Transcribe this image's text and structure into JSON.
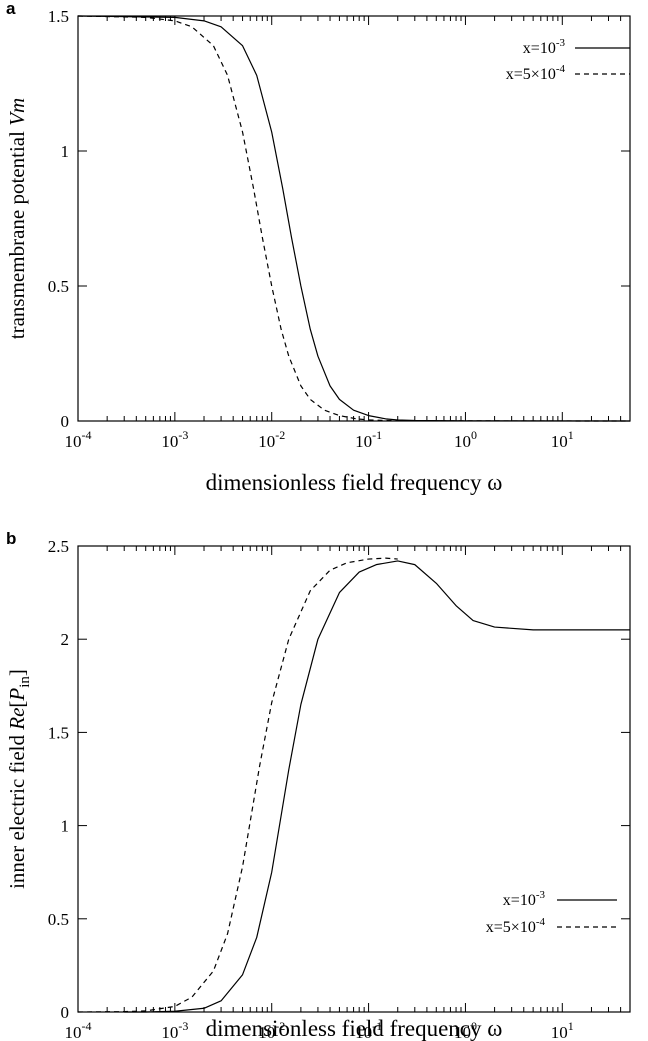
{
  "chart_data": [
    {
      "type": "line",
      "panel_label": "a",
      "xlabel": "dimensionless  field frequency ω",
      "ylabel_parts": {
        "main": "transmembrane potential ",
        "italic": "Vm",
        "rest": ""
      },
      "x_scale": "log",
      "xlim": [
        0.0001,
        50
      ],
      "ylim": [
        0,
        1.5
      ],
      "x_ticks": [
        {
          "base": "10",
          "exp": "-4",
          "value": 0.0001
        },
        {
          "base": "10",
          "exp": "-3",
          "value": 0.001
        },
        {
          "base": "10",
          "exp": "-2",
          "value": 0.01
        },
        {
          "base": "10",
          "exp": "-1",
          "value": 0.1
        },
        {
          "base": "10",
          "exp": "0",
          "value": 1
        },
        {
          "base": "10",
          "exp": "1",
          "value": 10
        }
      ],
      "y_ticks": [
        {
          "label": "0",
          "value": 0
        },
        {
          "label": "0.5",
          "value": 0.5
        },
        {
          "label": "1",
          "value": 1
        },
        {
          "label": "1.5",
          "value": 1.5
        }
      ],
      "legend_position": "top-right",
      "series": [
        {
          "name_parts": {
            "pre": "x=10",
            "sup": "-3"
          },
          "style": "solid",
          "color": "#000000",
          "points": [
            [
              0.0001,
              1.5
            ],
            [
              0.001,
              1.495
            ],
            [
              0.002,
              1.482
            ],
            [
              0.003,
              1.46
            ],
            [
              0.005,
              1.39
            ],
            [
              0.007,
              1.28
            ],
            [
              0.01,
              1.07
            ],
            [
              0.013,
              0.86
            ],
            [
              0.016,
              0.68
            ],
            [
              0.02,
              0.5
            ],
            [
              0.025,
              0.34
            ],
            [
              0.03,
              0.24
            ],
            [
              0.04,
              0.13
            ],
            [
              0.05,
              0.08
            ],
            [
              0.07,
              0.04
            ],
            [
              0.1,
              0.02
            ],
            [
              0.15,
              0.008
            ],
            [
              0.2,
              0.004
            ],
            [
              0.3,
              0.002
            ],
            [
              1,
              0.0005
            ],
            [
              50,
              0
            ]
          ]
        },
        {
          "name_parts": {
            "pre": "x=5×10",
            "sup": "-4"
          },
          "style": "dashed",
          "color": "#000000",
          "points": [
            [
              0.0001,
              1.5
            ],
            [
              0.0005,
              1.495
            ],
            [
              0.001,
              1.482
            ],
            [
              0.0015,
              1.46
            ],
            [
              0.0025,
              1.39
            ],
            [
              0.0035,
              1.28
            ],
            [
              0.005,
              1.07
            ],
            [
              0.0065,
              0.86
            ],
            [
              0.008,
              0.68
            ],
            [
              0.01,
              0.5
            ],
            [
              0.0125,
              0.34
            ],
            [
              0.015,
              0.24
            ],
            [
              0.02,
              0.13
            ],
            [
              0.025,
              0.08
            ],
            [
              0.035,
              0.04
            ],
            [
              0.05,
              0.02
            ],
            [
              0.075,
              0.008
            ],
            [
              0.1,
              0.004
            ],
            [
              0.15,
              0.002
            ],
            [
              0.5,
              0.0005
            ],
            [
              50,
              0
            ]
          ]
        }
      ]
    },
    {
      "type": "line",
      "panel_label": "b",
      "xlabel": "dimensionless  field frequency ω",
      "ylabel_parts": {
        "main": "inner electric field ",
        "italic": "Re",
        "rest": "[P",
        "sub": "in",
        "close": "]"
      },
      "x_scale": "log",
      "xlim": [
        0.0001,
        50
      ],
      "ylim": [
        0,
        2.5
      ],
      "x_ticks": [
        {
          "base": "10",
          "exp": "-4",
          "value": 0.0001
        },
        {
          "base": "10",
          "exp": "-3",
          "value": 0.001
        },
        {
          "base": "10",
          "exp": "-2",
          "value": 0.01
        },
        {
          "base": "10",
          "exp": "-1",
          "value": 0.1
        },
        {
          "base": "10",
          "exp": "0",
          "value": 1
        },
        {
          "base": "10",
          "exp": "1",
          "value": 10
        }
      ],
      "y_ticks": [
        {
          "label": "0",
          "value": 0
        },
        {
          "label": "0.5",
          "value": 0.5
        },
        {
          "label": "1",
          "value": 1
        },
        {
          "label": "1.5",
          "value": 1.5
        },
        {
          "label": "2",
          "value": 2
        },
        {
          "label": "2.5",
          "value": 2.5
        }
      ],
      "legend_position": "bottom-right",
      "series": [
        {
          "name_parts": {
            "pre": "x=10",
            "sup": "-3"
          },
          "style": "solid",
          "color": "#000000",
          "points": [
            [
              0.0003,
              0
            ],
            [
              0.0005,
              0
            ],
            [
              0.001,
              0.004
            ],
            [
              0.002,
              0.02
            ],
            [
              0.003,
              0.06
            ],
            [
              0.005,
              0.2
            ],
            [
              0.007,
              0.4
            ],
            [
              0.01,
              0.75
            ],
            [
              0.015,
              1.3
            ],
            [
              0.02,
              1.65
            ],
            [
              0.03,
              2.0
            ],
            [
              0.05,
              2.25
            ],
            [
              0.08,
              2.36
            ],
            [
              0.12,
              2.4
            ],
            [
              0.2,
              2.42
            ],
            [
              0.3,
              2.4
            ],
            [
              0.5,
              2.3
            ],
            [
              0.8,
              2.18
            ],
            [
              1.2,
              2.1
            ],
            [
              2,
              2.065
            ],
            [
              5,
              2.05
            ],
            [
              10,
              2.05
            ],
            [
              50,
              2.05
            ]
          ]
        },
        {
          "name_parts": {
            "pre": "x=5×10",
            "sup": "-4"
          },
          "style": "dashed",
          "color": "#000000",
          "points": [
            [
              0.0001,
              0
            ],
            [
              0.0003,
              0.002
            ],
            [
              0.0005,
              0.006
            ],
            [
              0.001,
              0.03
            ],
            [
              0.0015,
              0.08
            ],
            [
              0.0025,
              0.22
            ],
            [
              0.0035,
              0.42
            ],
            [
              0.005,
              0.78
            ],
            [
              0.0075,
              1.32
            ],
            [
              0.01,
              1.66
            ],
            [
              0.015,
              2.0
            ],
            [
              0.025,
              2.26
            ],
            [
              0.04,
              2.37
            ],
            [
              0.06,
              2.41
            ],
            [
              0.1,
              2.43
            ],
            [
              0.15,
              2.435
            ],
            [
              0.2,
              2.43
            ]
          ]
        }
      ]
    }
  ]
}
